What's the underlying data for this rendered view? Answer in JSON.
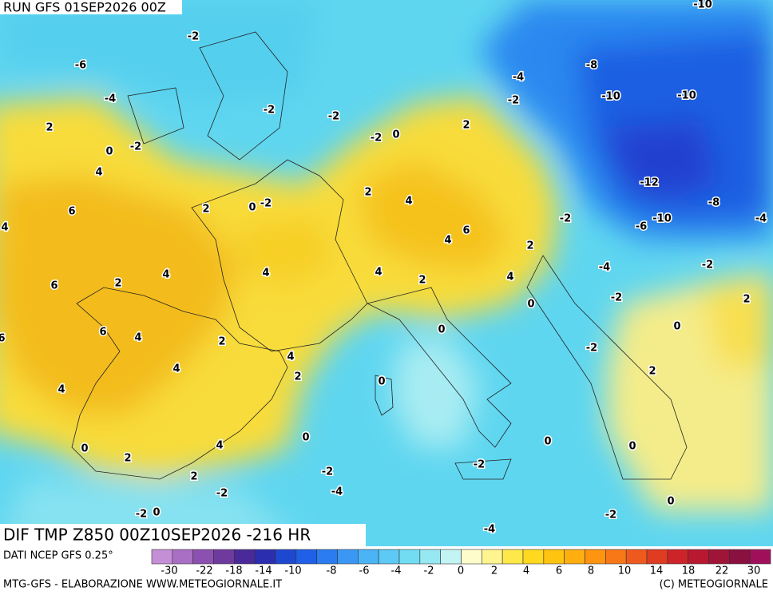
{
  "header": {
    "run": "RUN GFS 01SEP2026 00Z",
    "title": "DIF TMP Z850 00Z10SEP2026 -216 HR"
  },
  "footer": {
    "source": "DATI NCEP GFS 0.25°",
    "credit": "MTG-GFS - ELABORAZIONE WWW.METEOGIORNALE.IT",
    "copyright": "(C) METEOGIORNALE"
  },
  "colorbar": {
    "colors": [
      "#c58fd6",
      "#a86fc4",
      "#8c50b0",
      "#6e3a9e",
      "#4a2a9a",
      "#2c2eb0",
      "#1f48d0",
      "#2060e8",
      "#2a7cf0",
      "#3a98f4",
      "#4ab4f6",
      "#5ccaf4",
      "#72dcf2",
      "#96e8f2",
      "#c2f4f4",
      "#fffccc",
      "#fff490",
      "#ffe84a",
      "#ffd820",
      "#ffc410",
      "#ffae10",
      "#ff9410",
      "#f87818",
      "#ee5a1e",
      "#e03c22",
      "#cc2428",
      "#b81830",
      "#a01438",
      "#8a1040",
      "#a0105a"
    ],
    "labels": [
      "-30",
      "-22",
      "-18",
      "-14",
      "-10",
      "-8",
      "-6",
      "-4",
      "-2",
      "0",
      "2",
      "4",
      "6",
      "8",
      "10",
      "14",
      "18",
      "22",
      "30"
    ]
  },
  "map": {
    "labels": [
      "-10",
      "-2",
      "-6",
      "-8",
      "-4",
      "-4",
      "-2",
      "-10",
      "-10",
      "-2",
      "-2",
      "2",
      "2",
      "-2",
      "0",
      "-2",
      "0",
      "4",
      "-12",
      "2",
      "4",
      "2",
      "0",
      "-2",
      "-8",
      "6",
      "-2",
      "-10",
      "-6",
      "-4",
      "4",
      "6",
      "4",
      "2",
      "4",
      "4",
      "4",
      "2",
      "-4",
      "-2",
      "2",
      "6",
      "4",
      "-2",
      "2",
      "0",
      "0",
      "6",
      "4",
      "0",
      "6",
      "2",
      "4",
      "-2",
      "4",
      "2",
      "2",
      "0",
      "4",
      "0",
      "0",
      "0",
      "4",
      "0",
      "2",
      "-2",
      "-2",
      "2",
      "-2",
      "-4",
      "-2",
      "0",
      "-2",
      "0",
      "-4"
    ]
  }
}
